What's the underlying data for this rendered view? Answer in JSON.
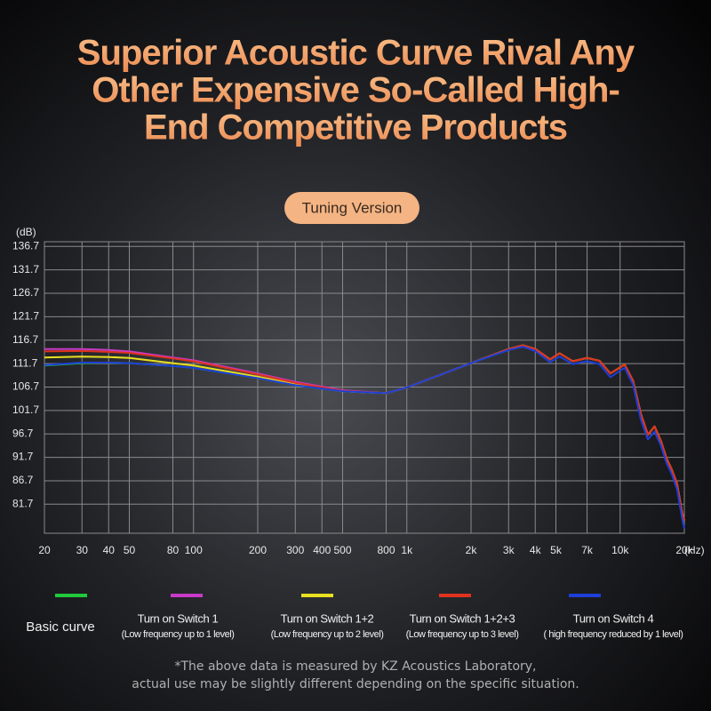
{
  "chart_data": {
    "type": "line",
    "title": [
      "Superior Acoustic Curve Rival Any",
      "Other Expensive So-Called High-",
      "End Competitive Products"
    ],
    "subtitle": "Tuning Version",
    "y_label": "(dB)",
    "x_label": "(Hz)",
    "log_x": true,
    "grid": true,
    "xlim": [
      20,
      20000
    ],
    "ylim": [
      75.5,
      137.7
    ],
    "yticks": [
      136.7,
      131.7,
      126.7,
      121.7,
      116.7,
      111.7,
      106.7,
      101.7,
      96.7,
      91.7,
      86.7,
      81.7
    ],
    "xticks": [
      20,
      30,
      40,
      50,
      80,
      100,
      200,
      300,
      400,
      500,
      800,
      {
        "value": 1000,
        "label": "1k"
      },
      {
        "value": 2000,
        "label": "2k"
      },
      {
        "value": 3000,
        "label": "3k"
      },
      {
        "value": 4000,
        "label": "4k"
      },
      {
        "value": 5000,
        "label": "5k"
      },
      {
        "value": 7000,
        "label": "7k"
      },
      {
        "value": 10000,
        "label": "10k"
      },
      {
        "value": 20000,
        "label": "20k"
      }
    ],
    "x": [
      20,
      30,
      40,
      50,
      80,
      100,
      200,
      300,
      500,
      800,
      1000,
      2000,
      3000,
      3500,
      4000,
      4700,
      5200,
      6000,
      7000,
      8000,
      9000,
      10500,
      11500,
      12500,
      13500,
      14500,
      15500,
      16500,
      17500,
      18500,
      19500,
      20000
    ],
    "series": [
      {
        "name": "Basic curve",
        "color": "#22c93a",
        "values": [
          111.3,
          111.8,
          111.9,
          111.8,
          111.2,
          110.8,
          108.6,
          107.1,
          105.8,
          105.4,
          106.6,
          111.8,
          114.8,
          115.6,
          114.8,
          112.6,
          113.9,
          112.2,
          112.9,
          112.3,
          109.6,
          111.5,
          108,
          101,
          96.5,
          98.3,
          95.3,
          91.5,
          89,
          86,
          80,
          78.2
        ]
      },
      {
        "name": "Turn on Switch 1",
        "description": "(Low frequency up to 1 level)",
        "color": "#c83ac8",
        "values": [
          114.8,
          114.8,
          114.6,
          114.3,
          113,
          112.4,
          109.6,
          107.8,
          106,
          105.4,
          106.6,
          111.8,
          114.8,
          115.6,
          114.8,
          112.6,
          113.9,
          112.2,
          112.9,
          112.3,
          109.6,
          111.5,
          108,
          101,
          96.5,
          98.3,
          95.3,
          91.5,
          89,
          86,
          80,
          78.2
        ]
      },
      {
        "name": "Turn on Switch 1+2",
        "description": "(Low frequency up to 2 level)",
        "color": "#e8e020",
        "values": [
          113,
          113.2,
          113.1,
          112.9,
          111.8,
          111.3,
          108.9,
          107.3,
          105.8,
          105.4,
          106.6,
          111.8,
          114.8,
          115.6,
          114.8,
          112.6,
          113.9,
          112.2,
          112.9,
          112.3,
          109.6,
          111.5,
          108,
          101,
          96.5,
          98.3,
          95.3,
          91.5,
          89,
          86,
          80,
          78.2
        ]
      },
      {
        "name": "Turn on Switch 1+2+3",
        "description": "(Low frequency up to 3 level)",
        "color": "#e0321e",
        "values": [
          114.3,
          114.4,
          114.2,
          114,
          112.8,
          112.2,
          109.4,
          107.6,
          105.9,
          105.4,
          106.6,
          111.8,
          114.8,
          115.6,
          114.8,
          112.6,
          113.9,
          112.2,
          112.9,
          112.3,
          109.6,
          111.5,
          108,
          101,
          96.5,
          98.3,
          95.3,
          91.5,
          89,
          86,
          80,
          78.2
        ]
      },
      {
        "name": "Turn on Switch 4",
        "description": "( high frequency reduced by 1 level)",
        "color": "#1d3fd8",
        "values": [
          111.4,
          111.9,
          111.9,
          111.8,
          111.2,
          110.8,
          108.6,
          107.1,
          105.8,
          105.4,
          106.6,
          111.8,
          114.6,
          115.3,
          114.4,
          112,
          113.2,
          111.6,
          112.2,
          111.6,
          108.8,
          110.8,
          107.2,
          99.8,
          95.5,
          97.2,
          94.3,
          90.5,
          88,
          84.8,
          78.8,
          76.5
        ]
      }
    ],
    "footnote": [
      "*The above data is measured by KZ Acoustics Laboratory,",
      "actual use may be slightly different depending on the specific situation."
    ]
  }
}
